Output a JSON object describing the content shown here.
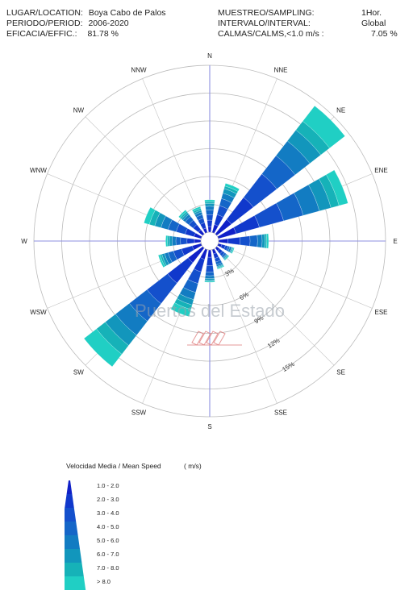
{
  "header": {
    "location_label": "LUGAR/LOCATION:",
    "location_value": "Boya  Cabo de Palos",
    "period_label": "PERIODO/PERIOD:",
    "period_value": "2006-2020",
    "efficacy_label": "EFICACIA/EFFIC.:",
    "efficacy_value": "81.78 %",
    "sampling_label": "MUESTREO/SAMPLING:",
    "sampling_value": "1Hor.",
    "interval_label": "INTERVALO/INTERVAL:",
    "interval_value": "Global",
    "calms_label": "CALMAS/CALMS,<1.0 m/s  :",
    "calms_value": "7.05 %"
  },
  "watermark": "Puertos del Estado",
  "chart_data": {
    "type": "wind-rose",
    "directions": [
      "N",
      "NNE",
      "NE",
      "ENE",
      "E",
      "ESE",
      "SE",
      "SSE",
      "S",
      "SSW",
      "SW",
      "WSW",
      "W",
      "WNW",
      "NW",
      "NNW"
    ],
    "ring_labels": [
      "3%",
      "6%",
      "9%",
      "12%",
      "15%"
    ],
    "rings": [
      3,
      6,
      9,
      12,
      15
    ],
    "r_max": 18,
    "speed_classes": [
      "1.0 - 2.0",
      "2.0 - 3.0",
      "3.0 - 4.0",
      "4.0 - 5.0",
      "5.0 - 6.0",
      "6.0 - 7.0",
      "7.0 - 8.0",
      "> 8.0"
    ],
    "colors": [
      "#1020c8",
      "#1038cc",
      "#1450cc",
      "#1466c8",
      "#127cc2",
      "#1296bc",
      "#16b2b8",
      "#20cfc4"
    ],
    "series": [
      {
        "direction": "N",
        "values": [
          0.6,
          0.7,
          0.6,
          0.5,
          0.4,
          0.3,
          0.2,
          0.2
        ]
      },
      {
        "direction": "NNE",
        "values": [
          0.9,
          1.1,
          1.0,
          0.8,
          0.6,
          0.5,
          0.3,
          0.3
        ]
      },
      {
        "direction": "NE",
        "values": [
          2.0,
          3.0,
          3.2,
          2.5,
          2.0,
          1.5,
          1.2,
          2.1
        ]
      },
      {
        "direction": "ENE",
        "values": [
          2.0,
          2.6,
          2.7,
          2.2,
          1.8,
          1.3,
          0.9,
          1.0
        ]
      },
      {
        "direction": "E",
        "values": [
          1.0,
          1.3,
          1.1,
          0.8,
          0.5,
          0.3,
          0.2,
          0.2
        ]
      },
      {
        "direction": "ESE",
        "values": [
          0.4,
          0.4,
          0.3,
          0.2,
          0.2,
          0.1,
          0.1,
          0.1
        ]
      },
      {
        "direction": "SE",
        "values": [
          0.4,
          0.4,
          0.3,
          0.2,
          0.1,
          0.1,
          0.1,
          0.1
        ]
      },
      {
        "direction": "SSE",
        "values": [
          0.5,
          0.5,
          0.4,
          0.3,
          0.2,
          0.1,
          0.1,
          0.1
        ]
      },
      {
        "direction": "S",
        "values": [
          0.8,
          0.9,
          0.7,
          0.4,
          0.3,
          0.2,
          0.1,
          0.1
        ]
      },
      {
        "direction": "SSW",
        "values": [
          1.1,
          1.4,
          1.3,
          1.0,
          0.8,
          0.6,
          0.5,
          0.8
        ]
      },
      {
        "direction": "SW",
        "values": [
          2.0,
          2.8,
          2.8,
          2.4,
          1.9,
          1.4,
          1.2,
          1.7
        ]
      },
      {
        "direction": "WSW",
        "values": [
          1.0,
          1.2,
          0.9,
          0.6,
          0.4,
          0.3,
          0.2,
          0.2
        ]
      },
      {
        "direction": "W",
        "values": [
          0.7,
          0.8,
          0.7,
          0.5,
          0.4,
          0.3,
          0.2,
          0.2
        ]
      },
      {
        "direction": "WNW",
        "values": [
          0.8,
          1.0,
          1.0,
          0.9,
          0.8,
          0.7,
          0.6,
          0.6
        ]
      },
      {
        "direction": "NW",
        "values": [
          0.6,
          0.7,
          0.6,
          0.5,
          0.3,
          0.2,
          0.2,
          0.2
        ]
      },
      {
        "direction": "NNW",
        "values": [
          0.5,
          0.6,
          0.5,
          0.4,
          0.3,
          0.2,
          0.2,
          0.2
        ]
      }
    ]
  },
  "legend": {
    "title": "Velocidad Media   / Mean Speed",
    "unit": "( m/s)"
  }
}
